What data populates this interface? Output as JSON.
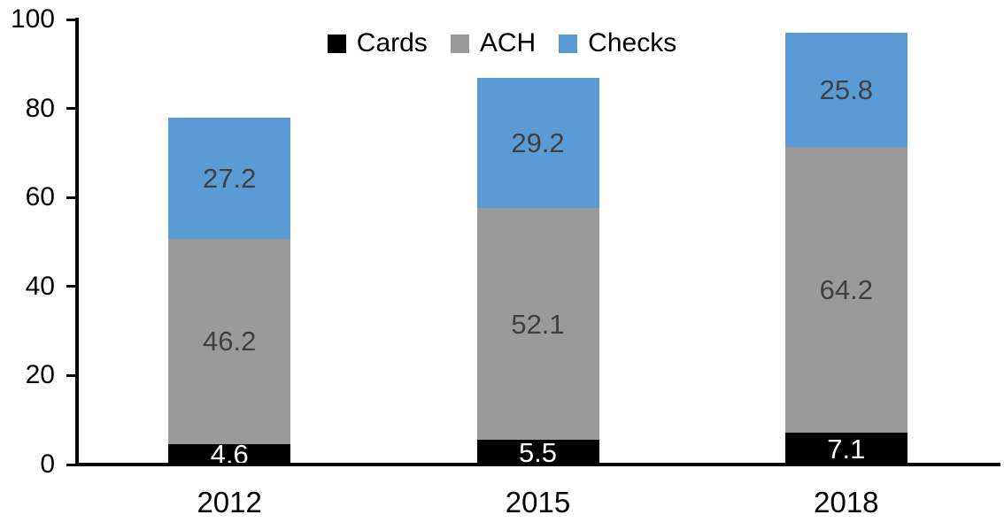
{
  "chart_data": {
    "type": "bar",
    "stacked": true,
    "title": "",
    "categories": [
      "2012",
      "2015",
      "2018"
    ],
    "series": [
      {
        "name": "Cards",
        "values": [
          4.6,
          5.5,
          7.1
        ],
        "color": "#000000",
        "label_color": "#FFFFFF"
      },
      {
        "name": "ACH",
        "values": [
          46.2,
          52.1,
          64.2
        ],
        "color": "#9A9A9A",
        "label_color": "#404040"
      },
      {
        "name": "Checks",
        "values": [
          27.2,
          29.2,
          25.8
        ],
        "color": "#5B9BD5",
        "label_color": "#404040"
      }
    ],
    "totals": [
      78.0,
      86.8,
      97.1
    ],
    "ylim": [
      0,
      100
    ],
    "yticks": [
      0,
      20,
      40,
      60,
      80,
      100
    ],
    "xlabel": "",
    "ylabel": "",
    "grid": false,
    "legend_position": "top",
    "value_label_decimals": 1,
    "axis_color": "#000000",
    "background_color": "#FFFFFF"
  }
}
